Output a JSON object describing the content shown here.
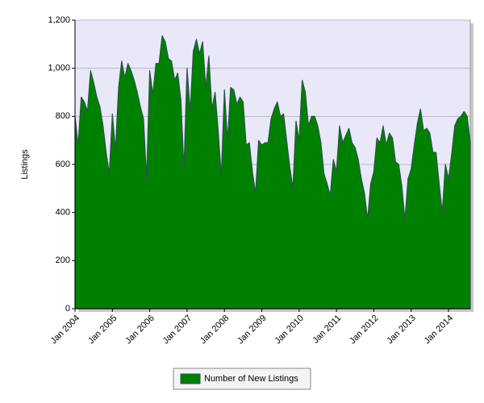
{
  "chart_data": {
    "type": "area",
    "y_label": "Listings",
    "categories": [
      "Jan 2004",
      null,
      null,
      null,
      null,
      null,
      null,
      null,
      null,
      null,
      null,
      null,
      "Jan 2005",
      null,
      null,
      null,
      null,
      null,
      null,
      null,
      null,
      null,
      null,
      null,
      "Jan 2006",
      null,
      null,
      null,
      null,
      null,
      null,
      null,
      null,
      null,
      null,
      null,
      "Jan 2007",
      null,
      null,
      null,
      null,
      null,
      null,
      null,
      null,
      null,
      null,
      null,
      "Jan 2008",
      null,
      null,
      null,
      null,
      null,
      null,
      null,
      null,
      null,
      null,
      null,
      "Jan 2009",
      null,
      null,
      null,
      null,
      null,
      null,
      null,
      null,
      null,
      null,
      null,
      "Jan 2010",
      null,
      null,
      null,
      null,
      null,
      null,
      null,
      null,
      null,
      null,
      null,
      "Jan 2011",
      null,
      null,
      null,
      null,
      null,
      null,
      null,
      null,
      null,
      null,
      null,
      "Jan 2012",
      null,
      null,
      null,
      null,
      null,
      null,
      null,
      null,
      null,
      null,
      null,
      "Jan 2013",
      null,
      null,
      null,
      null,
      null,
      null,
      null,
      null,
      null,
      null,
      null,
      "Jan 2014",
      null,
      null,
      null,
      null,
      null,
      null,
      null
    ],
    "series": [
      {
        "name": "Number of New Listings",
        "color": "#008000",
        "values": [
          800,
          680,
          880,
          860,
          820,
          990,
          940,
          880,
          840,
          760,
          650,
          560,
          810,
          660,
          920,
          1030,
          960,
          1020,
          990,
          950,
          900,
          840,
          790,
          540,
          990,
          890,
          1020,
          1020,
          1135,
          1110,
          1040,
          1030,
          950,
          980,
          870,
          580,
          1000,
          820,
          1070,
          1120,
          1060,
          1110,
          920,
          1050,
          830,
          900,
          740,
          550,
          910,
          700,
          920,
          910,
          850,
          880,
          860,
          680,
          690,
          570,
          480,
          700,
          680,
          690,
          690,
          790,
          830,
          860,
          800,
          810,
          700,
          590,
          500,
          780,
          700,
          950,
          900,
          760,
          800,
          800,
          760,
          690,
          560,
          520,
          470,
          620,
          570,
          760,
          690,
          720,
          750,
          690,
          670,
          620,
          540,
          480,
          370,
          520,
          570,
          710,
          690,
          760,
          680,
          730,
          710,
          610,
          600,
          510,
          370,
          540,
          580,
          680,
          770,
          830,
          740,
          750,
          730,
          650,
          650,
          520,
          400,
          600,
          540,
          640,
          760,
          790,
          800,
          820,
          800,
          690
        ]
      }
    ],
    "ylim": [
      0,
      1200
    ],
    "yticks": [
      0,
      200,
      400,
      600,
      800,
      {
        "value": 1000,
        "label": "1,000"
      },
      {
        "value": 1200,
        "label": "1,200"
      }
    ],
    "grid": true,
    "legend": "bottom"
  }
}
